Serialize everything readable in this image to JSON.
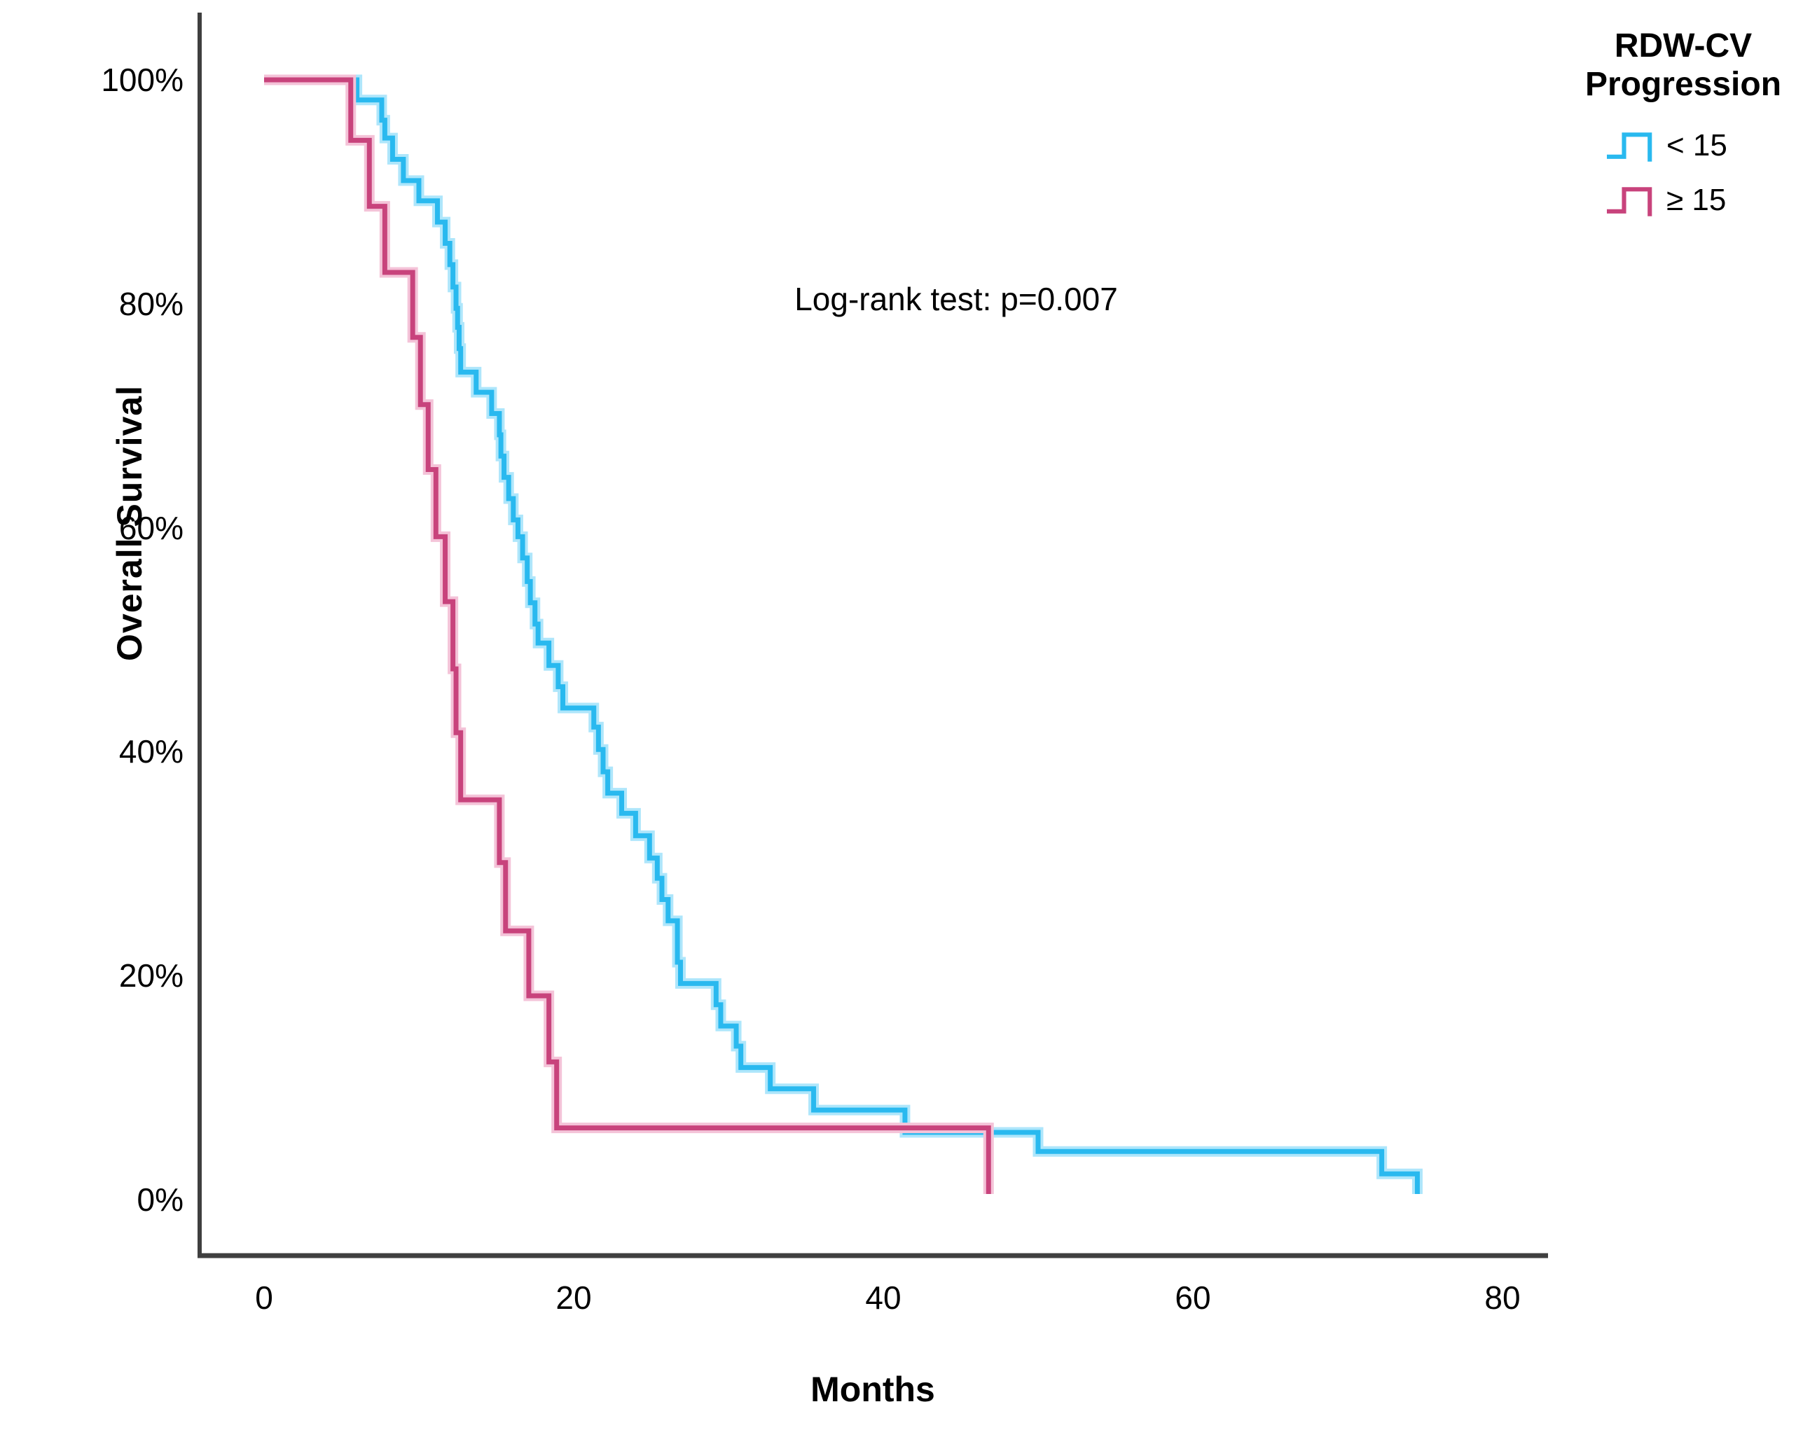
{
  "figure": {
    "background": "#ffffff"
  },
  "axes": {
    "y_title": "Overall Survival",
    "x_title": "Months",
    "y_tick_labels": [
      "100%",
      "80%",
      "60%",
      "40%",
      "20%",
      "0%"
    ],
    "y_tick_values": [
      100,
      80,
      60,
      40,
      20,
      0
    ],
    "x_tick_labels": [
      "0",
      "20",
      "40",
      "60",
      "80"
    ],
    "x_tick_values": [
      0,
      20,
      40,
      60,
      80
    ],
    "axis_color": "#3f3f3f"
  },
  "annotation": {
    "text": "Log-rank test: p=0.007"
  },
  "legend": {
    "title_line1": "RDW-CV",
    "title_line2": "Progression",
    "items": [
      {
        "label": "< 15",
        "color": "#29b9ef"
      },
      {
        "label": "≥ 15",
        "color": "#c8437c"
      }
    ]
  },
  "chart_data": {
    "type": "line",
    "subtype": "kaplan-meier-step",
    "title": "",
    "xlabel": "Months",
    "ylabel": "Overall Survival",
    "xlim": [
      -4.3,
      83
    ],
    "ylim_pct": [
      -5,
      105
    ],
    "x_ticks": [
      0,
      20,
      40,
      60,
      80
    ],
    "y_ticks_pct": [
      0,
      20,
      40,
      60,
      80,
      100
    ],
    "grid": false,
    "legend_position": "top-right-outside",
    "legend_title": "RDW-CV Progression",
    "annotation": "Log-rank test: p=0.007",
    "series": [
      {
        "name": "< 15",
        "color": "#29b9ef",
        "halo": "#aee6fb",
        "start": [
          0,
          100
        ],
        "steps": [
          [
            6.0,
            98.2
          ],
          [
            7.6,
            96.4
          ],
          [
            7.8,
            94.8
          ],
          [
            8.3,
            92.9
          ],
          [
            9.0,
            91.0
          ],
          [
            10.0,
            89.2
          ],
          [
            11.2,
            87.3
          ],
          [
            11.7,
            85.4
          ],
          [
            12.0,
            83.5
          ],
          [
            12.2,
            81.5
          ],
          [
            12.4,
            79.6
          ],
          [
            12.5,
            77.9
          ],
          [
            12.6,
            76.0
          ],
          [
            12.7,
            73.9
          ],
          [
            13.7,
            72.1
          ],
          [
            14.7,
            70.2
          ],
          [
            15.2,
            68.3
          ],
          [
            15.3,
            66.4
          ],
          [
            15.5,
            64.5
          ],
          [
            15.8,
            62.6
          ],
          [
            16.1,
            60.7
          ],
          [
            16.4,
            59.2
          ],
          [
            16.7,
            57.3
          ],
          [
            17.0,
            55.2
          ],
          [
            17.2,
            53.3
          ],
          [
            17.5,
            51.4
          ],
          [
            17.7,
            49.7
          ],
          [
            18.4,
            47.7
          ],
          [
            19.0,
            45.8
          ],
          [
            19.3,
            43.9
          ],
          [
            21.3,
            42.2
          ],
          [
            21.6,
            40.2
          ],
          [
            21.9,
            38.2
          ],
          [
            22.2,
            36.3
          ],
          [
            23.1,
            34.5
          ],
          [
            24.0,
            32.5
          ],
          [
            24.9,
            30.5
          ],
          [
            25.4,
            28.7
          ],
          [
            25.7,
            26.8
          ],
          [
            26.1,
            24.9
          ],
          [
            26.7,
            21.2
          ],
          [
            26.9,
            19.3
          ],
          [
            29.2,
            17.4
          ],
          [
            29.5,
            15.5
          ],
          [
            30.5,
            13.7
          ],
          [
            30.8,
            11.8
          ],
          [
            32.7,
            9.9
          ],
          [
            35.5,
            8.0
          ],
          [
            41.4,
            6.0
          ],
          [
            50.0,
            4.3
          ],
          [
            72.2,
            2.3
          ],
          [
            74.5,
            0.5
          ]
        ]
      },
      {
        "name": "≥ 15",
        "color": "#c8437c",
        "halo": "#f4c3d8",
        "start": [
          0,
          100
        ],
        "steps": [
          [
            5.6,
            94.6
          ],
          [
            6.8,
            88.7
          ],
          [
            7.8,
            82.8
          ],
          [
            9.6,
            77.0
          ],
          [
            10.1,
            71.0
          ],
          [
            10.6,
            65.2
          ],
          [
            11.1,
            59.2
          ],
          [
            11.7,
            53.4
          ],
          [
            12.2,
            47.4
          ],
          [
            12.4,
            41.7
          ],
          [
            12.7,
            35.7
          ],
          [
            15.2,
            30.1
          ],
          [
            15.6,
            24.0
          ],
          [
            17.1,
            18.2
          ],
          [
            18.4,
            12.3
          ],
          [
            18.9,
            6.4
          ],
          [
            46.8,
            0.5
          ]
        ]
      }
    ]
  }
}
